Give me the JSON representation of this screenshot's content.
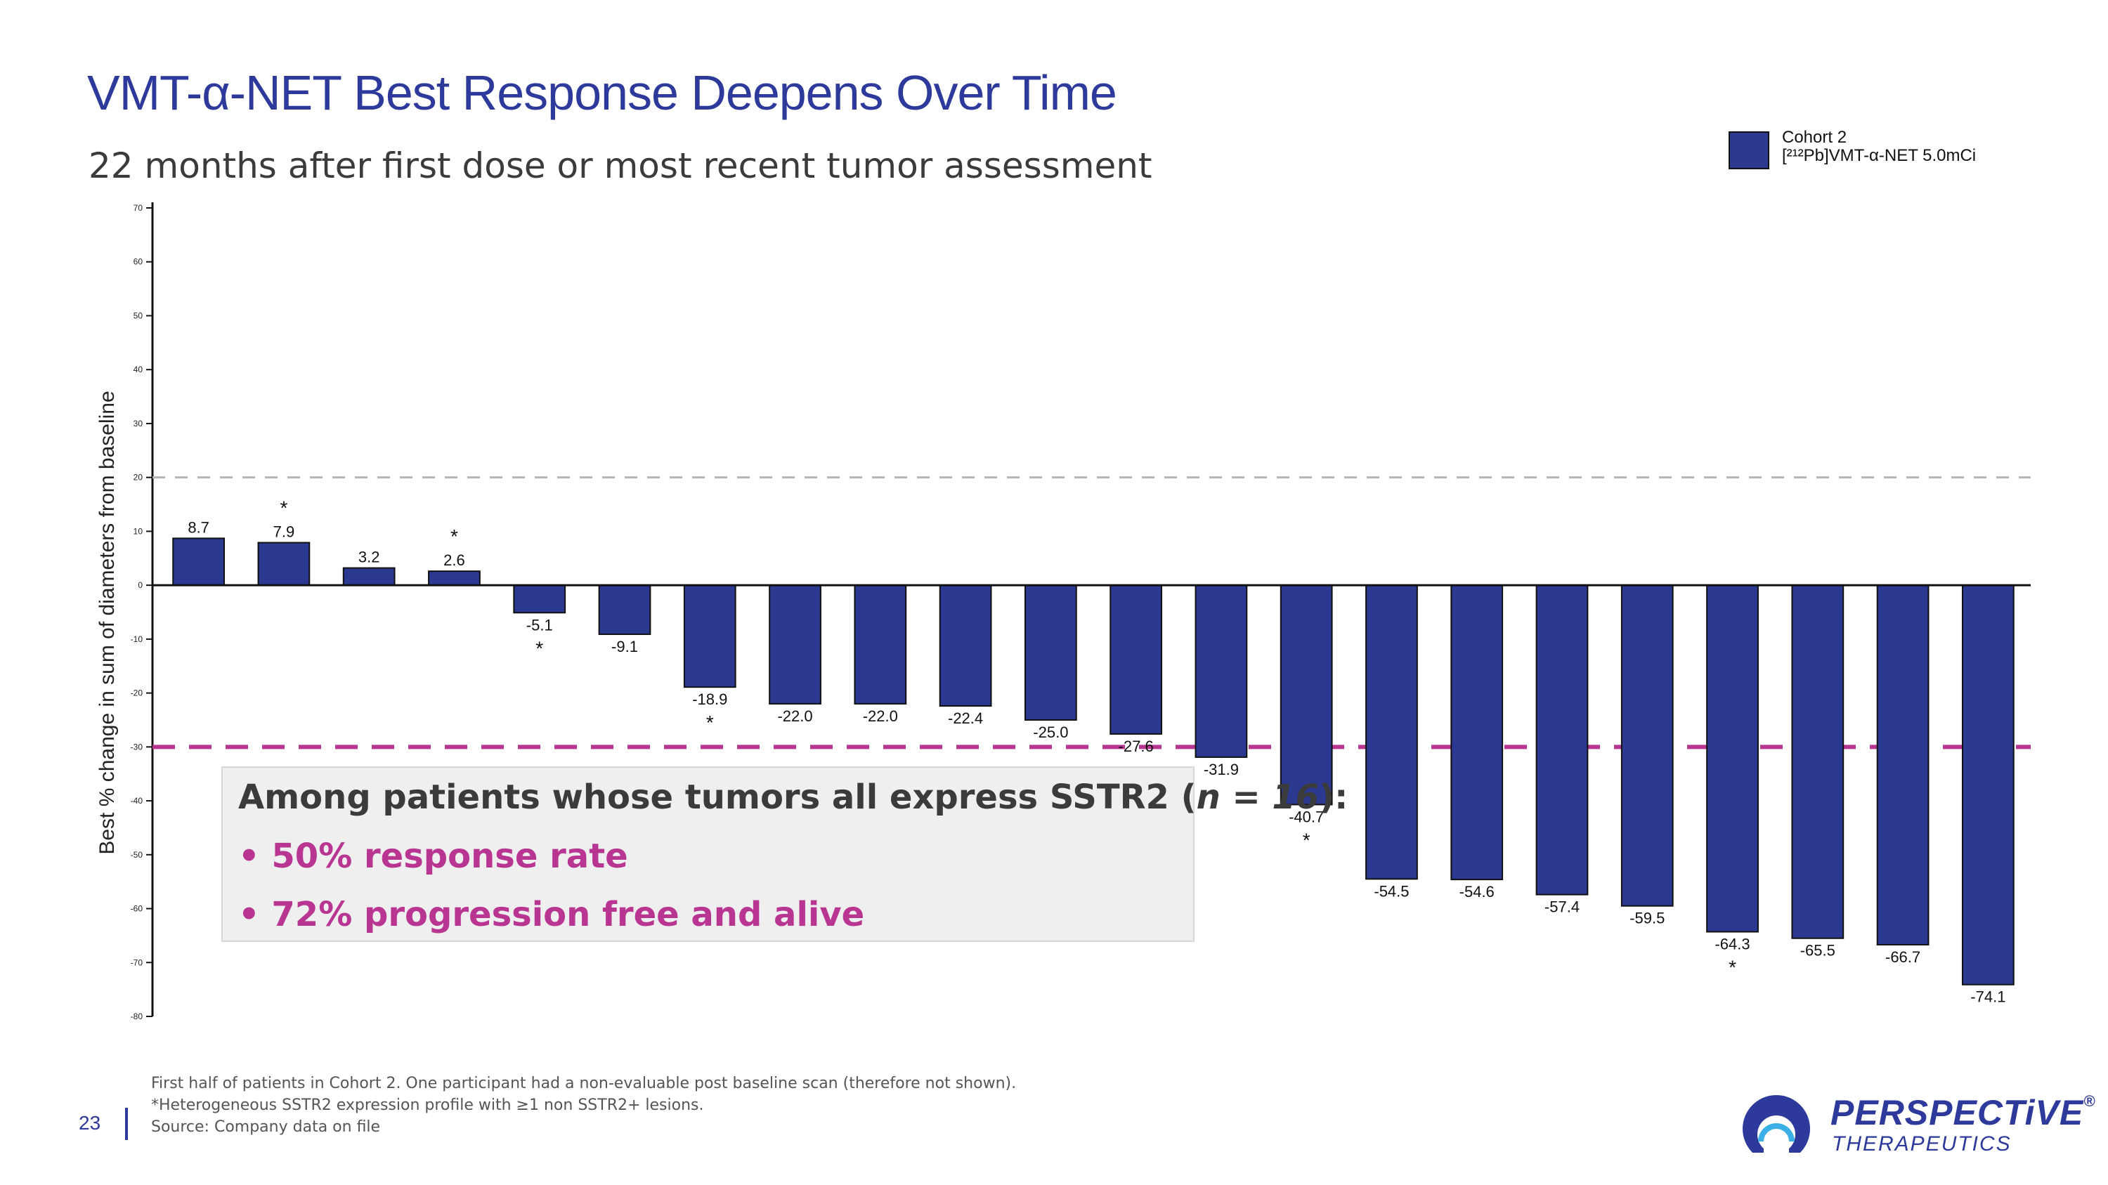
{
  "page": {
    "title": "VMT-α-NET Best Response Deepens Over Time",
    "subtitle": "22 months after first dose or most recent tumor assessment",
    "page_number": "23"
  },
  "legend": {
    "line1": "Cohort 2",
    "line2": "[²¹²Pb]VMT-α-NET 5.0mCi"
  },
  "callout": {
    "heading_prefix": "Among patients whose tumors all express SSTR2 (",
    "heading_n": "n = 16",
    "heading_suffix": "):",
    "items": [
      "• 50% response rate",
      "• 72% progression free and alive"
    ]
  },
  "footnotes": [
    "First half of patients in Cohort 2. One participant had a non-evaluable post baseline scan (therefore not shown).",
    "*Heterogeneous SSTR2 expression profile with ≥1 non SSTR2+ lesions.",
    "Source: Company data on file"
  ],
  "logo": {
    "word": "PERSPECTiVE",
    "mark": "®",
    "sub": "THERAPEUTICS"
  },
  "colors": {
    "bar": "#2b3990",
    "title": "#2d3a9c",
    "threshold_line": "#b83592",
    "accent_text": "#b83592"
  },
  "chart_data": {
    "type": "bar",
    "ylabel": "Best % change in sum of diameters from baseline",
    "ylim": [
      -80,
      70
    ],
    "yticks": [
      70,
      60,
      50,
      40,
      30,
      20,
      10,
      0,
      -10,
      -20,
      -30,
      -40,
      -50,
      -60,
      -70,
      -80
    ],
    "values": [
      8.7,
      7.9,
      3.2,
      2.6,
      -5.1,
      -9.1,
      -18.9,
      -22.0,
      -22.0,
      -22.4,
      -25.0,
      -27.6,
      -31.9,
      -40.7,
      -54.5,
      -54.6,
      -57.4,
      -59.5,
      -64.3,
      -65.5,
      -66.7,
      -74.1
    ],
    "labels": [
      "8.7",
      "7.9",
      "3.2",
      "2.6",
      "-5.1",
      "-9.1",
      "-18.9",
      "-22.0",
      "-22.0",
      "-22.4",
      "-25.0",
      "-27.6",
      "-31.9",
      "-40.7",
      "-54.5",
      "-54.6",
      "-57.4",
      "-59.5",
      "-64.3",
      "-65.5",
      "-66.7",
      "-74.1"
    ],
    "asterisk": [
      false,
      true,
      false,
      true,
      true,
      false,
      true,
      false,
      false,
      false,
      false,
      false,
      false,
      true,
      false,
      false,
      false,
      false,
      true,
      false,
      false,
      false
    ],
    "asterisk_symbol": "*",
    "reference_lines": [
      {
        "y": 20,
        "style": "dashed-gray"
      },
      {
        "y": -30,
        "style": "dashed-magenta"
      }
    ]
  }
}
